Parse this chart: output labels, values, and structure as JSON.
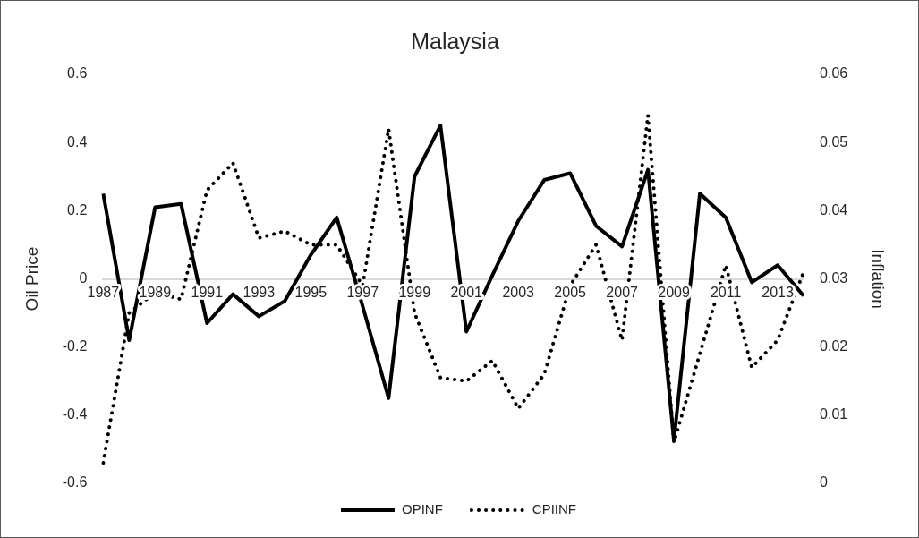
{
  "chart_data": {
    "type": "line",
    "title": "Malaysia",
    "ylabel": "Oil Price",
    "y2label": "Inflation",
    "categories": [
      "1987",
      null,
      "1989",
      null,
      "1991",
      null,
      "1993",
      null,
      "1995",
      null,
      "1997",
      null,
      "1999",
      null,
      "2001",
      null,
      "2003",
      null,
      "2005",
      null,
      "2007",
      null,
      "2009",
      null,
      "2011",
      null,
      "2013",
      null
    ],
    "series": [
      {
        "name": "OPINF",
        "color": "#000000",
        "line_style": "solid",
        "values": [
          0.25,
          -0.18,
          0.21,
          0.22,
          -0.13,
          -0.045,
          -0.11,
          -0.065,
          0.07,
          0.18,
          -0.08,
          -0.35,
          0.3,
          0.45,
          -0.155,
          0.01,
          0.17,
          0.29,
          0.31,
          0.155,
          0.095,
          0.32,
          -0.475,
          0.25,
          0.18,
          -0.01,
          0.04,
          -0.05
        ]
      },
      {
        "name": "CPIINF",
        "color": "#000000",
        "line_style": "dotted",
        "axis": "y2",
        "values": [
          0.003,
          0.025,
          0.028,
          0.027,
          0.043,
          0.047,
          0.036,
          0.037,
          0.035,
          0.035,
          0.029,
          0.052,
          0.025,
          0.0155,
          0.015,
          0.018,
          0.011,
          0.016,
          0.029,
          0.035,
          0.021,
          0.054,
          0.006,
          0.019,
          0.032,
          0.017,
          0.021,
          0.031
        ]
      }
    ],
    "ylim": [
      -0.6,
      0.6
    ],
    "yticks": [
      -0.6,
      -0.4,
      -0.2,
      0,
      0.2,
      0.4,
      0.6
    ],
    "y2lim": [
      0,
      0.06
    ],
    "y2ticks": [
      0,
      0.01,
      0.02,
      0.03,
      0.04,
      0.05,
      0.06
    ],
    "legend": "bottom",
    "marker": "none"
  }
}
